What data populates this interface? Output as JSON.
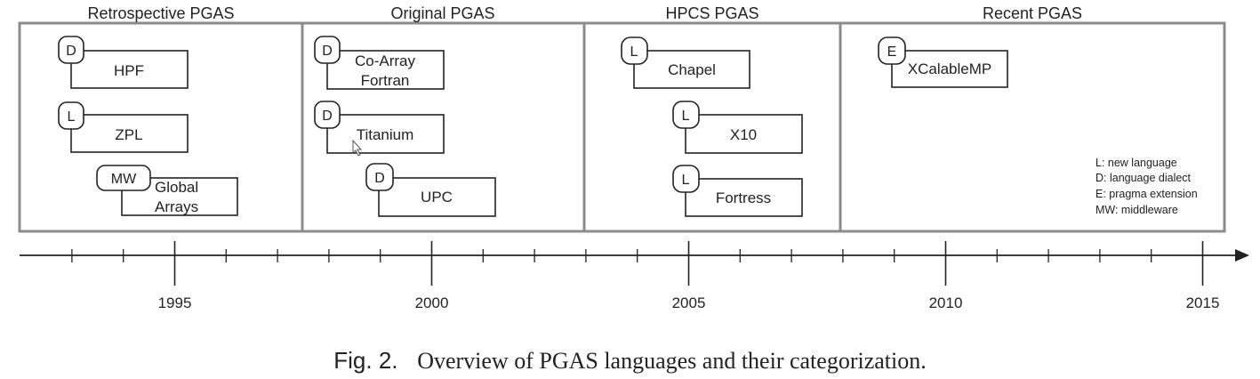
{
  "panels": [
    {
      "title": "Retrospective PGAS"
    },
    {
      "title": "Original PGAS"
    },
    {
      "title": "HPCS PGAS"
    },
    {
      "title": "Recent PGAS"
    }
  ],
  "languages": [
    {
      "name": "HPF",
      "category": "D"
    },
    {
      "name": "ZPL",
      "category": "L"
    },
    {
      "name": "Global Arrays",
      "category": "MW"
    },
    {
      "name": "Co-Array Fortran",
      "category": "D"
    },
    {
      "name": "Titanium",
      "category": "D"
    },
    {
      "name": "UPC",
      "category": "D"
    },
    {
      "name": "Chapel",
      "category": "L"
    },
    {
      "name": "X10",
      "category": "L"
    },
    {
      "name": "Fortress",
      "category": "L"
    },
    {
      "name": "XCalableMP",
      "category": "E"
    }
  ],
  "legend": [
    "L: new language",
    "D: language dialect",
    "E: pragma extension",
    "MW: middleware"
  ],
  "timeline": {
    "start_year": 1992,
    "end_year": 2015,
    "labels": [
      1995,
      2000,
      2005,
      2010,
      2015
    ]
  },
  "caption": {
    "label": "Fig. 2.",
    "text": "Overview of PGAS languages and their categorization."
  },
  "colors": {
    "ink": "#222222",
    "panel_border": "#8c8c8c"
  }
}
